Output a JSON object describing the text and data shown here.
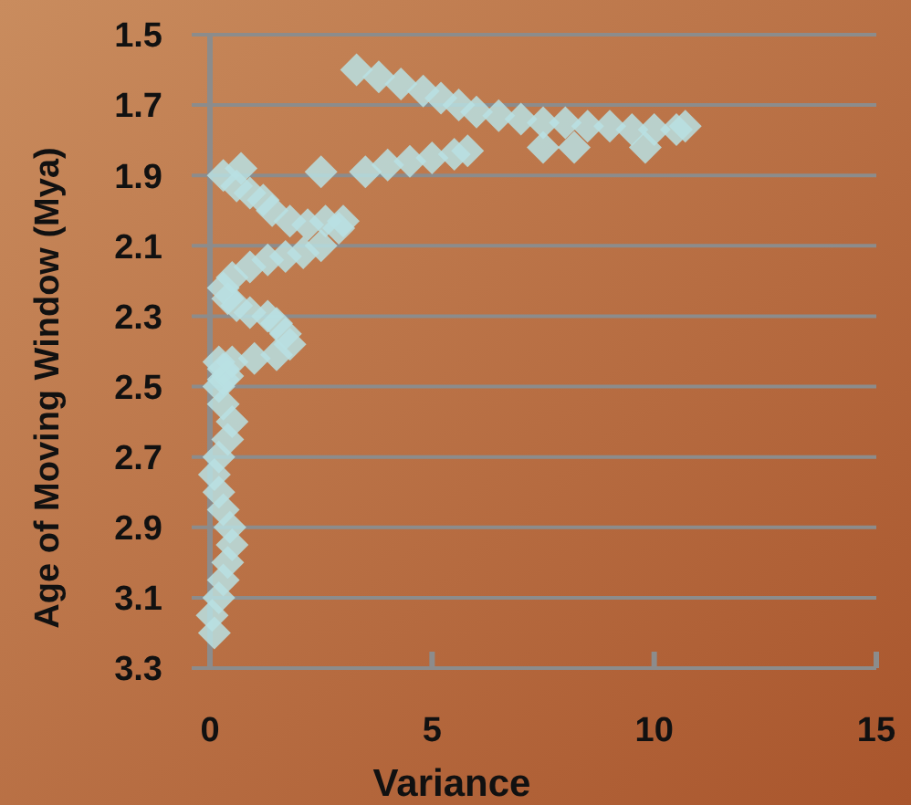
{
  "chart_data": {
    "type": "scatter",
    "xlabel": "Variance",
    "ylabel": "Age of Moving Window (Mya)",
    "xlim": [
      0,
      15
    ],
    "xticks": [
      0,
      5,
      10,
      15
    ],
    "ylim": [
      3.3,
      1.5
    ],
    "yticks": [
      1.5,
      1.7,
      1.9,
      2.1,
      2.3,
      2.5,
      2.7,
      2.9,
      3.1,
      3.3
    ],
    "grid": "y",
    "marker": "diamond",
    "series": [
      {
        "color": "#b8e0e3",
        "x": [
          0.1,
          0.05,
          0.2,
          0.3,
          0.4,
          0.5,
          0.45,
          0.3,
          0.2,
          0.1,
          0.2,
          0.4,
          0.5,
          0.3,
          0.2,
          0.3,
          0.4,
          0.3,
          0.2,
          0.5,
          1.0,
          1.5,
          1.8,
          1.7,
          1.5,
          1.3,
          0.9,
          0.6,
          0.4,
          0.3,
          0.5,
          0.9,
          1.3,
          1.7,
          2.1,
          2.5,
          2.9,
          3.0,
          2.6,
          2.2,
          1.8,
          1.4,
          1.2,
          0.9,
          0.6,
          0.3,
          0.7,
          2.5,
          3.5,
          4.0,
          4.5,
          5.0,
          5.5,
          5.8,
          3.3,
          3.8,
          4.3,
          4.8,
          5.2,
          5.6,
          6.0,
          6.5,
          7.0,
          7.5,
          8.0,
          8.5,
          9.0,
          9.5,
          10.0,
          10.5,
          10.7,
          7.5,
          8.2,
          9.8
        ],
        "values": [
          3.2,
          3.15,
          3.1,
          3.05,
          3.0,
          2.95,
          2.9,
          2.85,
          2.8,
          2.75,
          2.7,
          2.65,
          2.6,
          2.55,
          2.5,
          2.48,
          2.47,
          2.45,
          2.43,
          2.43,
          2.42,
          2.41,
          2.38,
          2.35,
          2.32,
          2.3,
          2.29,
          2.27,
          2.25,
          2.22,
          2.19,
          2.16,
          2.14,
          2.13,
          2.12,
          2.1,
          2.05,
          2.03,
          2.03,
          2.04,
          2.03,
          2.0,
          1.97,
          1.95,
          1.93,
          1.9,
          1.88,
          1.89,
          1.89,
          1.87,
          1.86,
          1.85,
          1.84,
          1.83,
          1.6,
          1.62,
          1.64,
          1.66,
          1.68,
          1.7,
          1.72,
          1.73,
          1.74,
          1.75,
          1.75,
          1.76,
          1.76,
          1.77,
          1.77,
          1.77,
          1.76,
          1.82,
          1.82,
          1.82
        ]
      }
    ]
  }
}
